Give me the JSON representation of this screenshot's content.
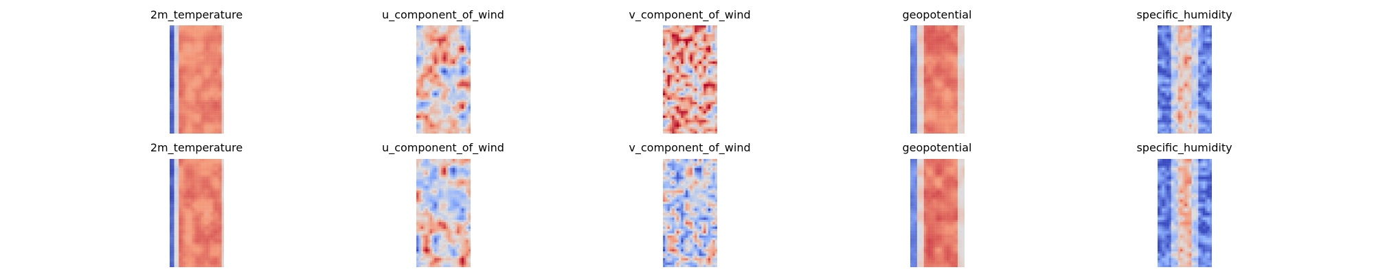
{
  "chart_data": {
    "type": "heatmap",
    "colormap": "coolwarm",
    "grid": false,
    "axes_visible": false,
    "rows": 2,
    "columns": 5,
    "panels": [
      {
        "title": "2m_temperature",
        "row": 0,
        "col": 0
      },
      {
        "title": "u_component_of_wind",
        "row": 0,
        "col": 1
      },
      {
        "title": "v_component_of_wind",
        "row": 0,
        "col": 2
      },
      {
        "title": "geopotential",
        "row": 0,
        "col": 3
      },
      {
        "title": "specific_humidity",
        "row": 0,
        "col": 4
      },
      {
        "title": "2m_temperature",
        "row": 1,
        "col": 0
      },
      {
        "title": "u_component_of_wind",
        "row": 1,
        "col": 1
      },
      {
        "title": "v_component_of_wind",
        "row": 1,
        "col": 2
      },
      {
        "title": "geopotential",
        "row": 1,
        "col": 3
      },
      {
        "title": "specific_humidity",
        "row": 1,
        "col": 4
      }
    ]
  }
}
